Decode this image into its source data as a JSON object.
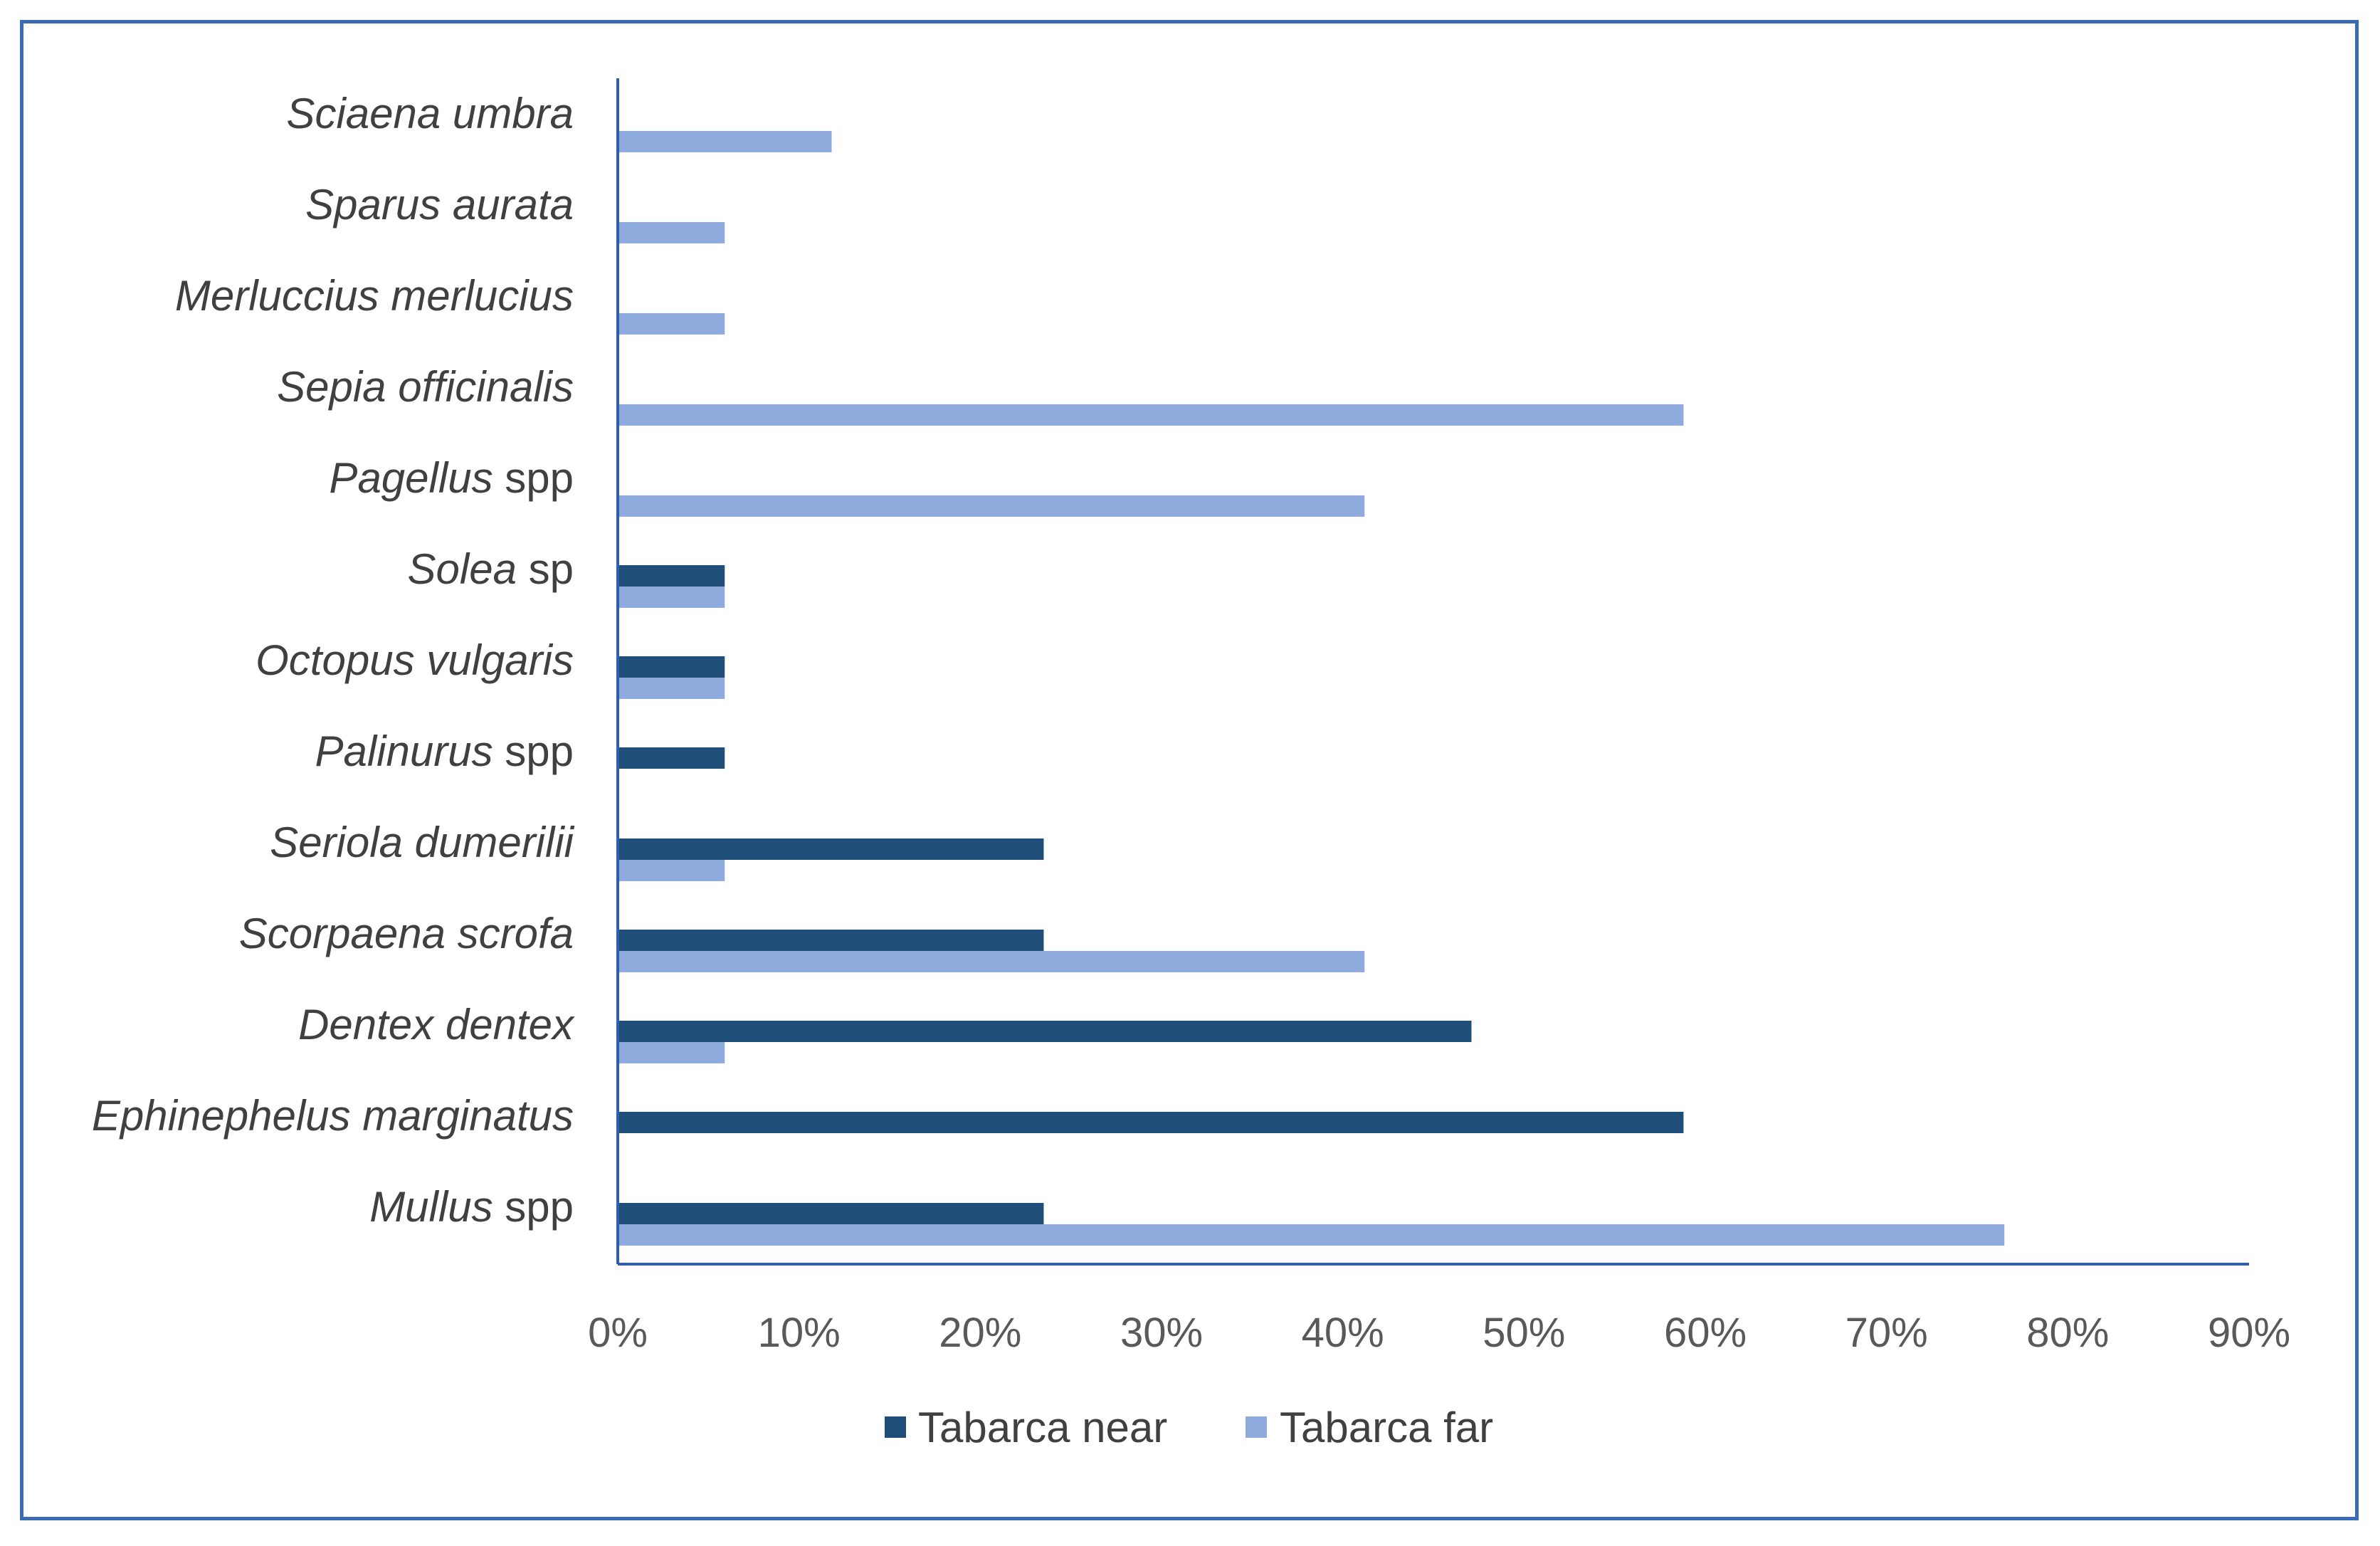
{
  "chart_data": {
    "type": "bar",
    "orientation": "horizontal",
    "categories": [
      {
        "italic": "Sciaena umbra",
        "suffix": ""
      },
      {
        "italic": "Sparus aurata",
        "suffix": ""
      },
      {
        "italic": "Merluccius merlucius",
        "suffix": ""
      },
      {
        "italic": "Sepia officinalis",
        "suffix": ""
      },
      {
        "italic": "Pagellus",
        "suffix": " spp"
      },
      {
        "italic": "Solea",
        "suffix": " sp"
      },
      {
        "italic": "Octopus vulgaris",
        "suffix": ""
      },
      {
        "italic": "Palinurus",
        "suffix": " spp"
      },
      {
        "italic": "Seriola dumerilii",
        "suffix": ""
      },
      {
        "italic": "Scorpaena scrofa",
        "suffix": ""
      },
      {
        "italic": "Dentex dentex",
        "suffix": ""
      },
      {
        "italic": "Ephinephelus marginatus",
        "suffix": ""
      },
      {
        "italic": "Mullus",
        "suffix": " spp"
      }
    ],
    "series": [
      {
        "name": "Tabarca near",
        "color": "#1f4e79",
        "values": [
          0,
          0,
          0,
          0,
          0,
          5.9,
          5.9,
          5.9,
          23.5,
          23.5,
          47.1,
          58.8,
          23.5
        ]
      },
      {
        "name": "Tabarca far",
        "color": "#8faadc",
        "values": [
          11.8,
          5.9,
          5.9,
          58.8,
          41.2,
          5.9,
          5.9,
          0,
          5.9,
          41.2,
          5.9,
          0,
          76.5
        ]
      }
    ],
    "xlim": [
      0,
      90
    ],
    "xticks": [
      "0%",
      "10%",
      "20%",
      "30%",
      "40%",
      "50%",
      "60%",
      "70%",
      "80%",
      "90%"
    ],
    "xtick_values": [
      0,
      10,
      20,
      30,
      40,
      50,
      60,
      70,
      80,
      90
    ],
    "legend_position": "bottom",
    "grid": false
  }
}
